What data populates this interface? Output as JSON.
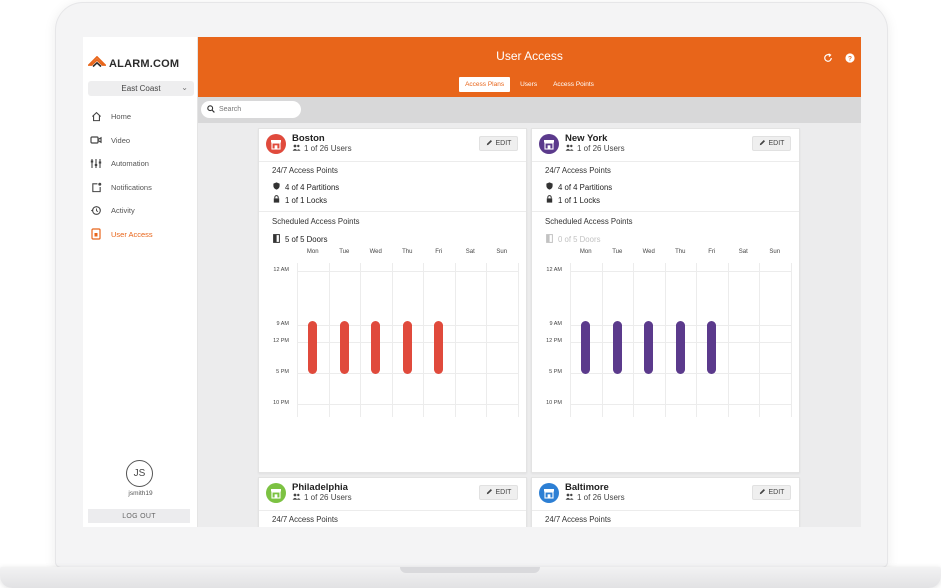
{
  "brand": {
    "name": "ALARM.COM",
    "accent": "#e8651a"
  },
  "sidebar": {
    "region": "East Coast",
    "items": [
      {
        "label": "Home",
        "icon": "home-icon",
        "active": false
      },
      {
        "label": "Video",
        "icon": "video-camera-icon",
        "active": false
      },
      {
        "label": "Automation",
        "icon": "automation-sliders-icon",
        "active": false
      },
      {
        "label": "Notifications",
        "icon": "notification-icon",
        "active": false
      },
      {
        "label": "Activity",
        "icon": "activity-history-icon",
        "active": false
      },
      {
        "label": "User Access",
        "icon": "badge-icon",
        "active": true
      }
    ],
    "user_initials": "JS",
    "username": "jsmith19",
    "logout_label": "LOG OUT"
  },
  "header": {
    "title": "User Access",
    "tabs": [
      {
        "label": "Access Plans",
        "active": true
      },
      {
        "label": "Users",
        "active": false
      },
      {
        "label": "Access Points",
        "active": false
      }
    ]
  },
  "search": {
    "placeholder": "Search"
  },
  "days": [
    "Mon",
    "Tue",
    "Wed",
    "Thu",
    "Fri",
    "Sat",
    "Sun"
  ],
  "times": [
    "12 AM",
    "9 AM",
    "12 PM",
    "5 PM",
    "10 PM"
  ],
  "cards": [
    {
      "name": "Boston",
      "users": "1 of 26 Users",
      "color": "#e04a3c",
      "edit_label": "EDIT",
      "always_title": "24/7 Access Points",
      "partitions": "4 of 4 Partitions",
      "locks": "1 of 1 Locks",
      "scheduled_title": "Scheduled Access Points",
      "doors": "5 of 5 Doors",
      "doors_muted": false,
      "schedule": {
        "bar_color": "#e04a3c",
        "days_active": [
          true,
          true,
          true,
          true,
          true,
          false,
          false
        ],
        "start_hour": 9,
        "end_hour": 17
      }
    },
    {
      "name": "New York",
      "users": "1 of 26 Users",
      "color": "#5b3a8c",
      "edit_label": "EDIT",
      "always_title": "24/7 Access Points",
      "partitions": "4 of 4 Partitions",
      "locks": "1 of 1 Locks",
      "scheduled_title": "Scheduled Access Points",
      "doors": "0 of 5 Doors",
      "doors_muted": true,
      "schedule": {
        "bar_color": "#5b3a8c",
        "days_active": [
          true,
          true,
          true,
          true,
          true,
          false,
          false
        ],
        "start_hour": 9,
        "end_hour": 17
      }
    },
    {
      "name": "Philadelphia",
      "users": "1 of 26 Users",
      "color": "#7cc242",
      "edit_label": "EDIT",
      "always_title": "24/7 Access Points"
    },
    {
      "name": "Baltimore",
      "users": "1 of 26 Users",
      "color": "#2d7fd4",
      "edit_label": "EDIT",
      "always_title": "24/7 Access Points"
    }
  ]
}
